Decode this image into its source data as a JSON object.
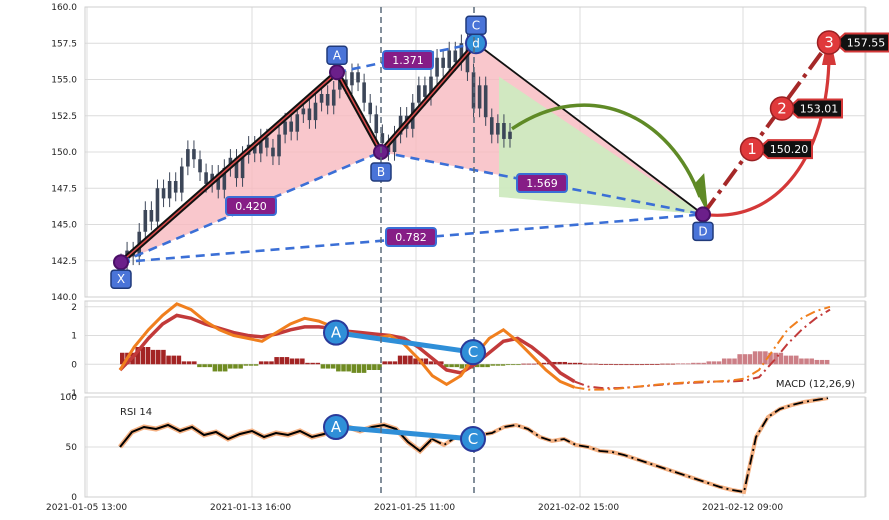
{
  "chart_data": [
    {
      "type": "line",
      "panel": "price",
      "ylim": [
        140,
        160
      ],
      "y_ticks": [
        "160.0",
        "157.5",
        "155.0",
        "152.5",
        "150.0",
        "147.5",
        "145.0",
        "142.5",
        "140.0"
      ],
      "x_ticks": [
        "2021-01-05 13:00",
        "2021-01-13 16:00",
        "2021-01-25 11:00",
        "2021-02-02 15:00",
        "2021-02-12 09:00"
      ],
      "grid": true,
      "pattern_points": [
        {
          "label": "X",
          "y": 142.4
        },
        {
          "label": "A",
          "y": 155.5
        },
        {
          "label": "B",
          "y": 150.0
        },
        {
          "label": "C",
          "y": 157.5
        },
        {
          "label": "D",
          "y": 145.7
        }
      ],
      "pattern_marker_c": "d",
      "ratios": [
        {
          "label": "0.420"
        },
        {
          "label": "1.371"
        },
        {
          "label": "1.569"
        },
        {
          "label": "0.782"
        }
      ],
      "targets": [
        {
          "num": "1",
          "value": "150.20"
        },
        {
          "num": "2",
          "value": "153.01"
        },
        {
          "num": "3",
          "value": "157.55"
        }
      ],
      "series": [
        {
          "values": [
            142.4,
            143.2,
            142.8,
            144.5,
            146.0,
            145.2,
            147.5,
            146.8,
            148.0,
            147.2,
            149.0,
            150.2,
            149.5,
            148.6,
            147.8,
            148.5,
            147.4,
            148.9,
            149.6,
            148.2,
            149.8,
            150.5,
            149.9,
            151.0,
            150.3,
            149.7,
            151.2,
            152.1,
            151.4,
            152.6,
            153.0,
            152.2,
            153.4,
            154.0,
            153.2,
            154.3,
            155.0,
            154.6,
            155.5,
            154.8,
            153.4,
            152.6,
            151.3,
            150.6,
            150.0,
            151.2,
            152.5,
            151.6,
            153.4,
            154.6,
            153.8,
            155.2,
            156.5,
            155.8,
            157.0,
            156.2,
            157.5,
            155.5,
            153.0,
            154.6,
            152.4,
            151.2,
            152.0,
            150.9,
            151.4
          ]
        }
      ]
    },
    {
      "type": "line",
      "panel": "macd",
      "title": "MACD (12,26,9)",
      "ylim": [
        -1,
        2.2
      ],
      "y_ticks": [
        "2",
        "1",
        "0",
        "-1"
      ],
      "pattern_points": [
        {
          "label": "A",
          "y": 1.1
        },
        {
          "label": "C",
          "y": 0.42
        }
      ],
      "series": [
        {
          "name": "macd",
          "color": "#f07f1e",
          "values": [
            -0.2,
            0.6,
            1.2,
            1.7,
            2.1,
            1.9,
            1.5,
            1.2,
            1.0,
            0.9,
            0.8,
            1.1,
            1.4,
            1.6,
            1.5,
            1.3,
            1.1,
            1.0,
            0.9,
            1.0,
            0.7,
            0.2,
            -0.4,
            -0.7,
            -0.4,
            0.3,
            0.9,
            1.2,
            0.8,
            0.3,
            -0.2,
            -0.6,
            -0.8,
            -0.88,
            -0.88,
            -0.85,
            -0.8,
            -0.75,
            -0.7,
            -0.66,
            -0.63,
            -0.6,
            -0.6,
            -0.57,
            -0.5,
            -0.2,
            0.5,
            1.2,
            1.6,
            1.85,
            2.0
          ]
        },
        {
          "name": "signal",
          "color": "#c23a3a",
          "values": [
            -0.2,
            0.3,
            0.9,
            1.4,
            1.7,
            1.6,
            1.4,
            1.25,
            1.1,
            1.0,
            0.95,
            1.05,
            1.2,
            1.3,
            1.3,
            1.25,
            1.15,
            1.1,
            1.05,
            1.0,
            0.9,
            0.6,
            0.2,
            -0.2,
            -0.3,
            0.0,
            0.4,
            0.8,
            0.9,
            0.6,
            0.2,
            -0.3,
            -0.6,
            -0.78,
            -0.83,
            -0.83,
            -0.8,
            -0.76,
            -0.72,
            -0.68,
            -0.65,
            -0.63,
            -0.6,
            -0.6,
            -0.57,
            -0.45,
            0.1,
            0.7,
            1.2,
            1.6,
            1.9
          ]
        },
        {
          "name": "histogram",
          "values": [
            0.4,
            0.6,
            0.5,
            0.3,
            0.1,
            -0.1,
            -0.25,
            -0.15,
            -0.05,
            0.1,
            0.25,
            0.2,
            0.05,
            -0.15,
            -0.25,
            -0.3,
            -0.2,
            0.1,
            0.3,
            0.2,
            0.1,
            -0.1,
            -0.15,
            -0.1,
            -0.05,
            -0.02,
            0.02,
            0.05,
            0.08,
            0.05,
            0.02,
            0.01,
            0.0,
            0.0,
            0.01,
            0.02,
            0.03,
            0.05,
            0.1,
            0.2,
            0.35,
            0.45,
            0.4,
            0.3,
            0.2,
            0.15
          ]
        }
      ]
    },
    {
      "type": "line",
      "panel": "rsi",
      "title": "RSI 14",
      "ylim": [
        0,
        100
      ],
      "y_ticks": [
        "100",
        "50",
        "0"
      ],
      "pattern_points": [
        {
          "label": "A",
          "y": 70
        },
        {
          "label": "C",
          "y": 58
        }
      ],
      "series": [
        {
          "name": "rsi",
          "color": "#000000",
          "values": [
            50,
            65,
            70,
            68,
            72,
            66,
            70,
            62,
            65,
            58,
            63,
            66,
            60,
            64,
            62,
            66,
            60,
            63,
            68,
            70,
            66,
            70,
            72,
            68,
            55,
            46,
            58,
            52,
            60,
            56,
            62,
            64,
            70,
            72,
            68,
            60,
            56,
            58,
            52,
            50,
            46,
            45,
            42,
            38,
            34,
            30,
            26,
            22,
            18,
            14,
            10,
            7,
            5,
            60,
            80,
            88,
            92,
            95,
            97,
            99
          ]
        }
      ]
    }
  ]
}
